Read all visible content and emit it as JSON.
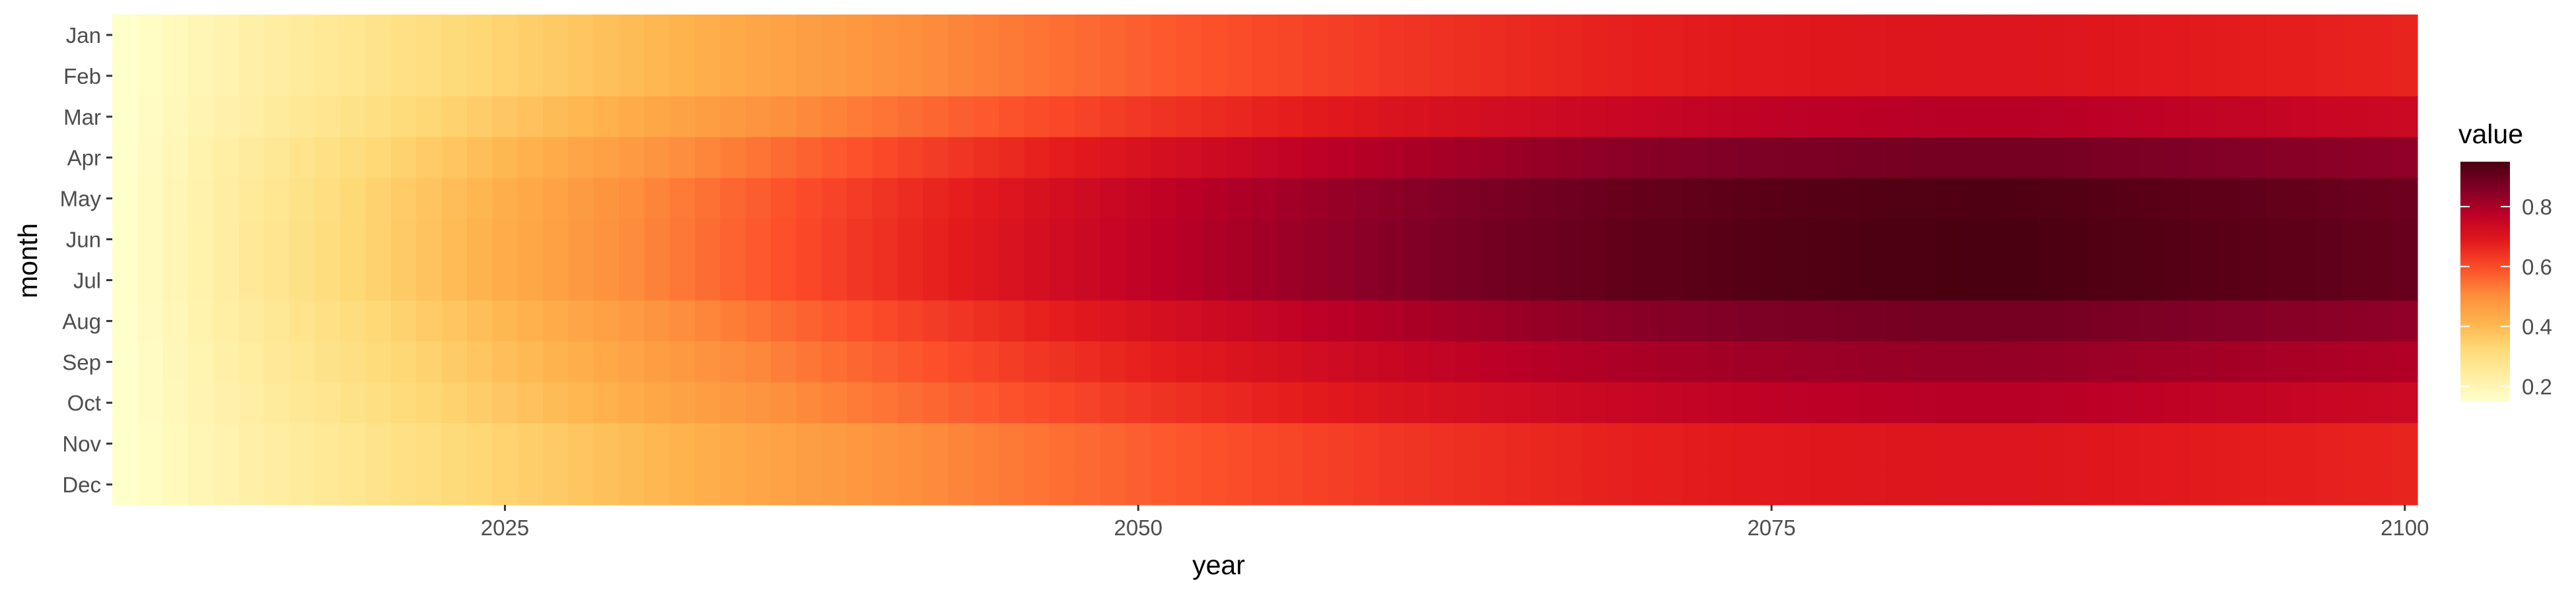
{
  "chart_data": {
    "type": "heatmap",
    "title": "",
    "xlabel": "year",
    "ylabel": "month",
    "x_range": [
      2010,
      2100
    ],
    "x_ticks": [
      "2025",
      "2050",
      "2075",
      "2100"
    ],
    "months": [
      "Jan",
      "Feb",
      "Mar",
      "Apr",
      "May",
      "Jun",
      "Jul",
      "Aug",
      "Sep",
      "Oct",
      "Nov",
      "Dec"
    ],
    "month_peak_values": [
      0.7,
      0.7,
      0.78,
      0.88,
      0.94,
      0.95,
      0.95,
      0.88,
      0.83,
      0.78,
      0.7,
      0.7
    ],
    "peak_year": 2085,
    "start_value": 0.15,
    "value_function": "value = start + (peak - start) * sin(pi/2 * min(1, (year-2010)/(peak_year-2010)))^0.9, near-flat after peak",
    "legend": {
      "title": "value",
      "position": "right",
      "ticks": [
        "0.2",
        "0.4",
        "0.6",
        "0.8"
      ],
      "range": [
        0.15,
        0.95
      ]
    },
    "colors": [
      "#ffffcc",
      "#ffeda0",
      "#fed976",
      "#feb24c",
      "#fd8d3c",
      "#fc4e2a",
      "#e31a1c",
      "#bd0026",
      "#800026",
      "#4a0010"
    ],
    "grid": false
  }
}
